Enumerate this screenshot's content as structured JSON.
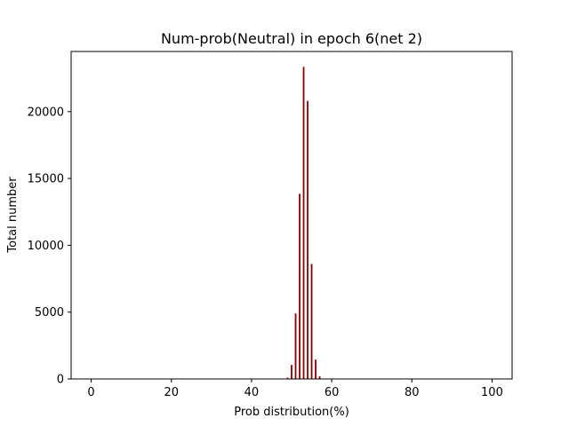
{
  "chart_data": {
    "type": "bar",
    "title": "Num-prob(Neutral) in epoch 6(net 2)",
    "xlabel": "Prob distribution(%)",
    "ylabel": "Total number",
    "xlim": [
      -5,
      105
    ],
    "ylim": [
      0,
      24500
    ],
    "xticks": [
      0,
      20,
      40,
      60,
      80,
      100
    ],
    "yticks": [
      0,
      5000,
      10000,
      15000,
      20000
    ],
    "bar_color": "#8b0000",
    "bar_width": 0.4,
    "grid": false,
    "legend": "none",
    "x": [
      49,
      50,
      51,
      52,
      53,
      54,
      55,
      56,
      57
    ],
    "values": [
      100,
      1050,
      4900,
      13850,
      23350,
      20800,
      8600,
      1450,
      200
    ]
  }
}
